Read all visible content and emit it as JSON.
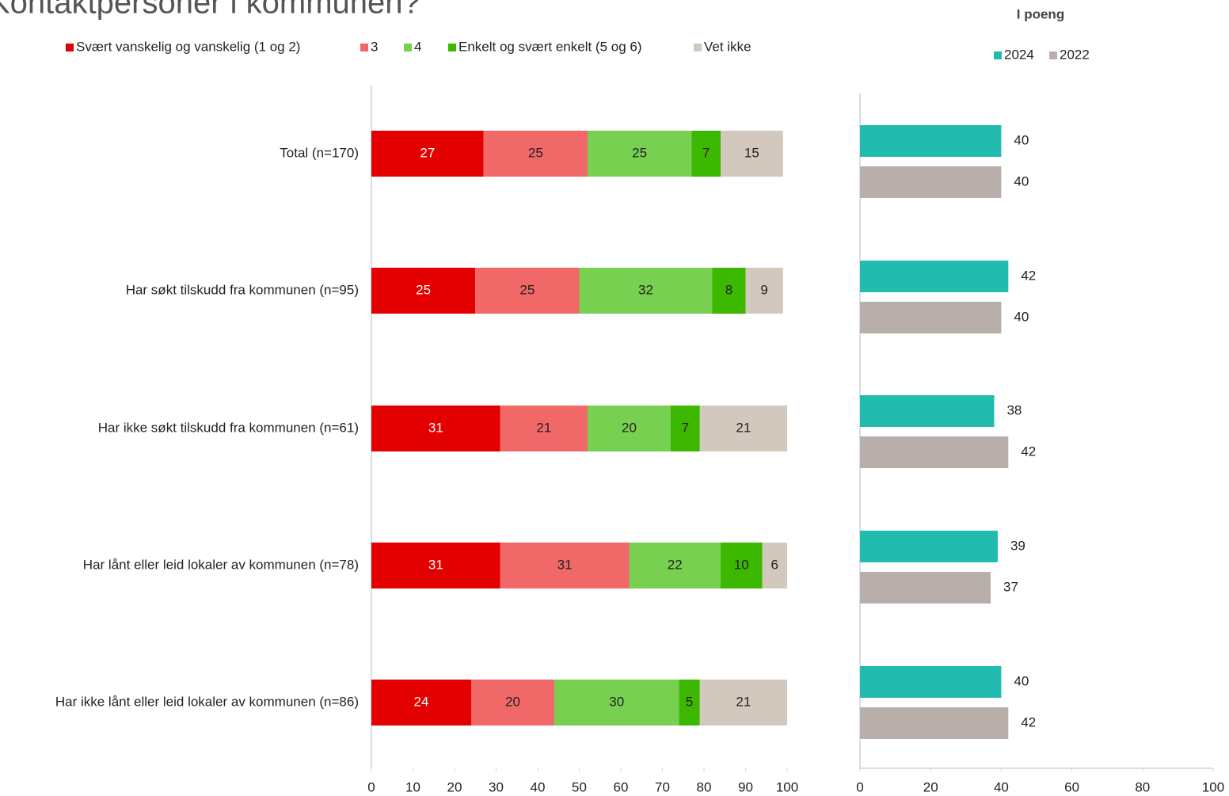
{
  "chart_data": [
    {
      "type": "stacked-hbar",
      "title": "Kontaktpersoner i kommunen?",
      "categories": [
        "Total (n=170)",
        "Har søkt tilskudd fra kommunen (n=95)",
        "Har ikke søkt tilskudd fra kommunen (n=61)",
        "Har lånt eller leid lokaler av kommunen (n=78)",
        "Har ikke lånt eller leid lokaler av kommunen (n=86)"
      ],
      "series": [
        {
          "name": "Svært vanskelig og vanskelig (1 og 2)",
          "color": "#e30000",
          "values": [
            27,
            25,
            31,
            31,
            24
          ]
        },
        {
          "name": "3",
          "color": "#f06868",
          "values": [
            25,
            25,
            21,
            31,
            20
          ]
        },
        {
          "name": "4",
          "color": "#77d04f",
          "values": [
            25,
            32,
            20,
            22,
            30
          ]
        },
        {
          "name": "Enkelt og svært enkelt (5 og 6)",
          "color": "#3cb800",
          "values": [
            7,
            8,
            7,
            10,
            5
          ]
        },
        {
          "name": "Vet ikke",
          "color": "#d3c8bd",
          "values": [
            15,
            9,
            21,
            6,
            21
          ]
        }
      ],
      "xlim": [
        0,
        100
      ],
      "xticks": [
        0,
        10,
        20,
        30,
        40,
        50,
        60,
        70,
        80,
        90,
        100
      ]
    },
    {
      "type": "grouped-hbar",
      "subtitle": "I poeng",
      "series": [
        {
          "name": "2024",
          "color": "#22bbb0",
          "values": [
            40,
            42,
            38,
            39,
            40
          ]
        },
        {
          "name": "2022",
          "color": "#b8afaa",
          "values": [
            40,
            40,
            42,
            37,
            42
          ]
        }
      ],
      "xlim": [
        0,
        100
      ],
      "xticks": [
        0,
        20,
        40,
        60,
        80,
        100
      ]
    }
  ]
}
